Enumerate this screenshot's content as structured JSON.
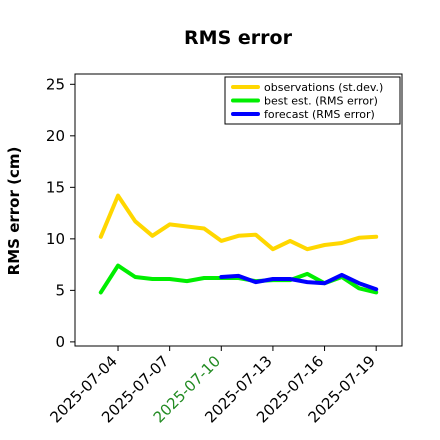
{
  "chart_data": {
    "type": "line",
    "title": "RMS error",
    "xlabel": "",
    "ylabel": "RMS error (cm)",
    "ylim": [
      -0.4,
      26
    ],
    "yticks": [
      0,
      5,
      10,
      15,
      20,
      25
    ],
    "xlim": [
      "2025-07-01T12:00",
      "2025-07-20T12:00"
    ],
    "xticks": [
      "2025-07-04",
      "2025-07-07",
      "2025-07-10",
      "2025-07-13",
      "2025-07-16",
      "2025-07-19"
    ],
    "highlight_tick": "2025-07-10",
    "highlight_color": "#228b22",
    "legend_position": "top-right",
    "grid": false,
    "series": [
      {
        "name": "observations (st.dev.)",
        "color": "#ffd700",
        "x": [
          "2025-07-03",
          "2025-07-04",
          "2025-07-05",
          "2025-07-06",
          "2025-07-07",
          "2025-07-08",
          "2025-07-09",
          "2025-07-10",
          "2025-07-11",
          "2025-07-12",
          "2025-07-13",
          "2025-07-14",
          "2025-07-15",
          "2025-07-16",
          "2025-07-17",
          "2025-07-18",
          "2025-07-19"
        ],
        "values": [
          10.2,
          14.2,
          11.7,
          10.3,
          11.4,
          11.2,
          11.0,
          9.8,
          10.3,
          10.4,
          9.0,
          9.8,
          9.0,
          9.4,
          9.6,
          10.1,
          10.2
        ]
      },
      {
        "name": "best est. (RMS error)",
        "color": "#00ee00",
        "x": [
          "2025-07-03",
          "2025-07-04",
          "2025-07-05",
          "2025-07-06",
          "2025-07-07",
          "2025-07-08",
          "2025-07-09",
          "2025-07-10",
          "2025-07-11",
          "2025-07-12",
          "2025-07-13",
          "2025-07-14",
          "2025-07-15",
          "2025-07-16",
          "2025-07-17",
          "2025-07-18",
          "2025-07-19"
        ],
        "values": [
          4.8,
          7.4,
          6.3,
          6.1,
          6.1,
          5.9,
          6.2,
          6.2,
          6.2,
          5.9,
          6.0,
          6.0,
          6.6,
          5.7,
          6.3,
          5.2,
          4.8
        ]
      },
      {
        "name": "forecast (RMS error)",
        "color": "#0000ff",
        "x": [
          "2025-07-10",
          "2025-07-11",
          "2025-07-12",
          "2025-07-13",
          "2025-07-14",
          "2025-07-15",
          "2025-07-16",
          "2025-07-17",
          "2025-07-18",
          "2025-07-19"
        ],
        "values": [
          6.3,
          6.4,
          5.8,
          6.1,
          6.1,
          5.8,
          5.7,
          6.5,
          5.7,
          5.1
        ]
      }
    ]
  }
}
